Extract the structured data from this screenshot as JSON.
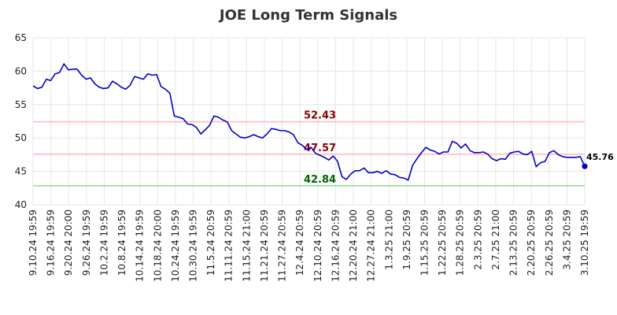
{
  "chart_data": {
    "type": "line",
    "title": "JOE Long Term Signals",
    "ylim": [
      40,
      65
    ],
    "y_ticks": [
      "40",
      "45",
      "50",
      "55",
      "60",
      "65"
    ],
    "y_tick_values": [
      40,
      45,
      50,
      55,
      60,
      65
    ],
    "x_tick_labels": [
      "9.10.24 19:59",
      "9.16.24 19:59",
      "9.20.24 20:00",
      "9.26.24 19:59",
      "10.2.24 19:59",
      "10.8.24 19:59",
      "10.14.24 19:59",
      "10.18.24 20:00",
      "10.24.24 19:59",
      "10.30.24 19:59",
      "11.5.24 20:59",
      "11.11.24 20:59",
      "11.15.24 21:00",
      "11.21.24 20:59",
      "11.27.24 20:59",
      "12.4.24 20:59",
      "12.10.24 20:59",
      "12.16.24 20:59",
      "12.20.24 21:00",
      "12.27.24 21:00",
      "1.3.25 21:00",
      "1.9.25 20:59",
      "1.15.25 20:59",
      "1.22.25 20:59",
      "1.28.25 20:59",
      "2.3.25 20:59",
      "2.7.25 21:00",
      "2.13.25 20:59",
      "2.20.25 20:59",
      "2.26.25 20:59",
      "3.4.25 20:59",
      "3.10.25 19:59"
    ],
    "grid": true,
    "series": [
      {
        "color": "#0000cc",
        "values": [
          57.8,
          57.4,
          57.6,
          58.8,
          58.6,
          59.6,
          59.8,
          61.1,
          60.2,
          60.3,
          60.3,
          59.4,
          58.8,
          59.0,
          58.1,
          57.6,
          57.4,
          57.5,
          58.5,
          58.1,
          57.6,
          57.3,
          57.9,
          59.2,
          59.0,
          58.8,
          59.6,
          59.4,
          59.5,
          57.7,
          57.3,
          56.7,
          53.3,
          53.1,
          52.9,
          52.1,
          52.0,
          51.6,
          50.6,
          51.2,
          51.9,
          53.3,
          53.1,
          52.7,
          52.4,
          51.1,
          50.6,
          50.1,
          50.0,
          50.2,
          50.5,
          50.2,
          50.0,
          50.6,
          51.4,
          51.3,
          51.1,
          51.1,
          50.9,
          50.5,
          49.3,
          48.9,
          48.3,
          48.6,
          47.7,
          47.4,
          47.1,
          46.7,
          47.3,
          46.5,
          44.2,
          43.8,
          44.6,
          45.1,
          45.1,
          45.5,
          44.8,
          44.8,
          45.0,
          44.7,
          45.1,
          44.6,
          44.5,
          44.1,
          44.0,
          43.7,
          45.9,
          46.9,
          47.8,
          48.6,
          48.2,
          48.0,
          47.6,
          47.9,
          47.9,
          49.5,
          49.2,
          48.5,
          49.1,
          48.1,
          47.8,
          47.8,
          47.9,
          47.6,
          46.9,
          46.6,
          46.9,
          46.8,
          47.7,
          47.9,
          48.0,
          47.6,
          47.5,
          48.0,
          45.7,
          46.3,
          46.5,
          47.8,
          48.1,
          47.5,
          47.2,
          47.1,
          47.1,
          47.1,
          47.2,
          45.76
        ]
      }
    ],
    "levels": [
      {
        "value": 52.43,
        "label": "52.43",
        "line_color": "#ffbbbb",
        "text_color": "#8b0000"
      },
      {
        "value": 47.57,
        "label": "47.57",
        "line_color": "#ffbbbb",
        "text_color": "#8b0000"
      },
      {
        "value": 42.84,
        "label": "42.84",
        "line_color": "#99dd99",
        "text_color": "#006400"
      }
    ],
    "last_value_label": "45.76",
    "last_point_color": "#0000cc"
  }
}
